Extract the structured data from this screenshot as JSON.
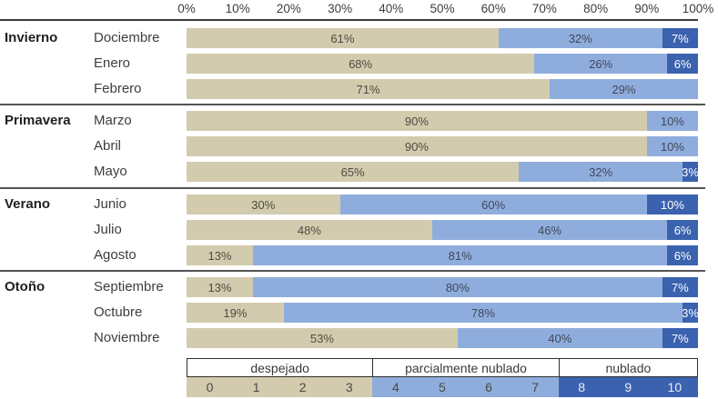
{
  "chart_data": {
    "type": "bar",
    "orientation": "horizontal",
    "stacked": true,
    "unit": "%",
    "xlim": [
      0,
      100
    ],
    "x_ticks": [
      "0%",
      "10%",
      "20%",
      "30%",
      "40%",
      "50%",
      "60%",
      "70%",
      "80%",
      "90%",
      "100%"
    ],
    "series_names": [
      "despejado",
      "parcialmente nublado",
      "nublado"
    ],
    "colors": {
      "despejado": "#d3cbad",
      "parcialmente_nublado": "#8faddc",
      "nublado": "#3a62ae"
    },
    "groups": [
      {
        "season": "Invierno",
        "rows": [
          {
            "month": "Dociembre",
            "values": [
              61,
              32,
              7
            ],
            "labels": [
              "61%",
              "32%",
              "7%"
            ]
          },
          {
            "month": "Enero",
            "values": [
              68,
              26,
              6
            ],
            "labels": [
              "68%",
              "26%",
              "6%"
            ]
          },
          {
            "month": "Febrero",
            "values": [
              71,
              29,
              0
            ],
            "labels": [
              "71%",
              "29%",
              ""
            ]
          }
        ]
      },
      {
        "season": "Primavera",
        "rows": [
          {
            "month": "Marzo",
            "values": [
              90,
              10,
              0
            ],
            "labels": [
              "90%",
              "10%",
              ""
            ]
          },
          {
            "month": "Abril",
            "values": [
              90,
              10,
              0
            ],
            "labels": [
              "90%",
              "10%",
              ""
            ]
          },
          {
            "month": "Mayo",
            "values": [
              65,
              32,
              3
            ],
            "labels": [
              "65%",
              "32%",
              "3%"
            ]
          }
        ]
      },
      {
        "season": "Verano",
        "rows": [
          {
            "month": "Junio",
            "values": [
              30,
              60,
              10
            ],
            "labels": [
              "30%",
              "60%",
              "10%"
            ]
          },
          {
            "month": "Julio",
            "values": [
              48,
              46,
              6
            ],
            "labels": [
              "48%",
              "46%",
              "6%"
            ]
          },
          {
            "month": "Agosto",
            "values": [
              13,
              81,
              6
            ],
            "labels": [
              "13%",
              "81%",
              "6%"
            ]
          }
        ]
      },
      {
        "season": "Otoño",
        "rows": [
          {
            "month": "Septiembre",
            "values": [
              13,
              80,
              7
            ],
            "labels": [
              "13%",
              "80%",
              "7%"
            ]
          },
          {
            "month": "Octubre",
            "values": [
              19,
              78,
              3
            ],
            "labels": [
              "19%",
              "78%",
              "3%"
            ]
          },
          {
            "month": "Noviembre",
            "values": [
              53,
              40,
              7
            ],
            "labels": [
              "53%",
              "40%",
              "7%"
            ]
          }
        ]
      }
    ],
    "legend": {
      "position": "bottom",
      "sections": [
        {
          "label": "despejado",
          "scale_values": [
            "0",
            "1",
            "2",
            "3"
          ],
          "color": "#d3cbad"
        },
        {
          "label": "parcialmente nublado",
          "scale_values": [
            "4",
            "5",
            "6",
            "7"
          ],
          "color": "#8faddc"
        },
        {
          "label": "nublado",
          "scale_values": [
            "8",
            "9",
            "10"
          ],
          "color": "#3a62ae"
        }
      ],
      "scale_total_units": 11
    }
  }
}
